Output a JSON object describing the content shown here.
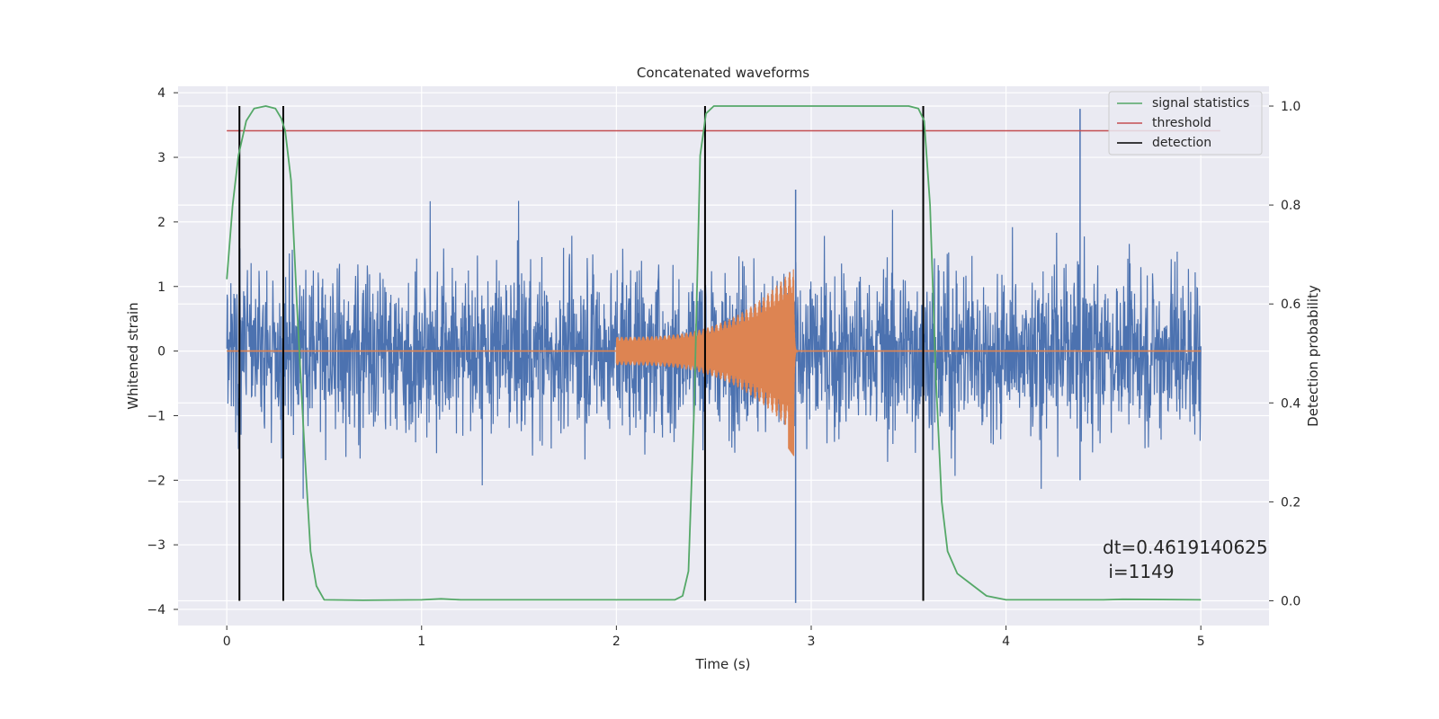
{
  "chart_data": {
    "type": "line",
    "title": "Concatenated waveforms",
    "xlabel": "Time (s)",
    "ylabel": "Whitened strain",
    "ylabel_right": "Detection probability",
    "xlim": [
      -0.25,
      5.35
    ],
    "ylim": [
      -4.25,
      4.1
    ],
    "ylim_right": [
      -0.05,
      1.04
    ],
    "x_ticks": [
      0,
      1,
      2,
      3,
      4,
      5
    ],
    "y_ticks": [
      -4,
      -3,
      -2,
      -1,
      0,
      1,
      2,
      3,
      4
    ],
    "y_ticks_right": [
      0.0,
      0.2,
      0.4,
      0.6,
      0.8,
      1.0
    ],
    "legend_position": "top-right",
    "annotation": [
      "dt=0.4619140625",
      " i=1149"
    ],
    "series": [
      {
        "name": "signal statistics",
        "axis": "right",
        "color": "#55a868",
        "x": [
          0.0,
          0.03,
          0.06,
          0.1,
          0.14,
          0.2,
          0.25,
          0.28,
          0.3,
          0.33,
          0.36,
          0.4,
          0.43,
          0.46,
          0.5,
          0.7,
          1.0,
          1.1,
          1.2,
          1.5,
          2.0,
          2.3,
          2.34,
          2.37,
          2.4,
          2.43,
          2.46,
          2.5,
          2.6,
          3.0,
          3.5,
          3.55,
          3.58,
          3.61,
          3.64,
          3.67,
          3.7,
          3.75,
          3.8,
          3.9,
          4.0,
          4.5,
          4.6,
          5.0
        ],
        "y": [
          0.65,
          0.8,
          0.9,
          0.97,
          0.995,
          1.0,
          0.995,
          0.975,
          0.95,
          0.85,
          0.6,
          0.3,
          0.1,
          0.03,
          0.002,
          0.001,
          0.002,
          0.004,
          0.002,
          0.002,
          0.002,
          0.002,
          0.01,
          0.06,
          0.4,
          0.9,
          0.985,
          1.0,
          1.0,
          1.0,
          1.0,
          0.995,
          0.97,
          0.8,
          0.45,
          0.2,
          0.1,
          0.055,
          0.04,
          0.01,
          0.002,
          0.002,
          0.003,
          0.002
        ]
      },
      {
        "name": "threshold",
        "axis": "right",
        "color": "#c44e52",
        "x": [
          0.0,
          5.1
        ],
        "y": [
          0.95,
          0.95
        ]
      },
      {
        "name": "detection",
        "axis": "right",
        "color": "#000000",
        "type": "vlines",
        "x": [
          0.065,
          0.29,
          2.455,
          3.575
        ],
        "y_range": [
          0.0,
          1.0
        ]
      },
      {
        "name": "",
        "axis": "left",
        "color": "#4c72b0",
        "type": "noise",
        "x_range": [
          0.0,
          5.0
        ],
        "y_extent": [
          -3.9,
          3.75
        ]
      },
      {
        "name": "",
        "axis": "left",
        "color": "#dd8452",
        "type": "chirp",
        "x_range": [
          2.0,
          2.93
        ],
        "amplitude_start": 0.22,
        "amplitude_peak": 1.3,
        "peak_x": 2.91,
        "y_min": -2.0
      }
    ]
  }
}
